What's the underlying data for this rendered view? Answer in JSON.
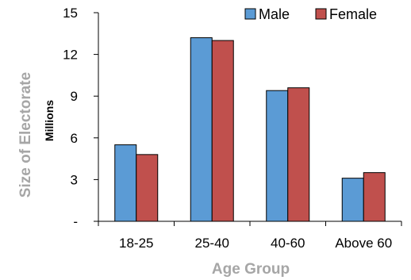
{
  "chart_data": {
    "type": "bar",
    "categories": [
      "18-25",
      "25-40",
      "40-60",
      "Above 60"
    ],
    "series": [
      {
        "name": "Male",
        "values": [
          5.5,
          13.2,
          9.4,
          3.1
        ],
        "color": "#5b9bd5"
      },
      {
        "name": "Female",
        "values": [
          4.8,
          13.0,
          9.6,
          3.5
        ],
        "color": "#c0504d"
      }
    ],
    "y_ticks": [
      {
        "value": 0,
        "label": "-"
      },
      {
        "value": 3,
        "label": "3"
      },
      {
        "value": 6,
        "label": "6"
      },
      {
        "value": 9,
        "label": "9"
      },
      {
        "value": 12,
        "label": "12"
      },
      {
        "value": 15,
        "label": "15"
      }
    ],
    "ylim": [
      0,
      15
    ],
    "xlabel": "Age Group",
    "ylabel": "Size of  Electorate",
    "ylabel_unit": "Millions",
    "grid": false,
    "legend_position": "top-right"
  }
}
